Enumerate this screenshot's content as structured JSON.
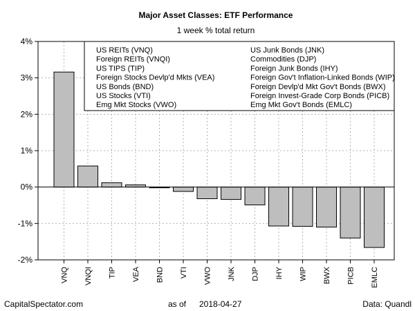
{
  "chart_data": {
    "type": "bar",
    "title": "Major Asset Classes: ETF Performance",
    "subtitle": "1 week % total return",
    "categories": [
      "VNQ",
      "VNQI",
      "TIP",
      "VEA",
      "BND",
      "VTI",
      "VWO",
      "JNK",
      "DJP",
      "IHY",
      "WIP",
      "BWX",
      "PICB",
      "EMLC"
    ],
    "values": [
      3.16,
      0.58,
      0.12,
      0.06,
      -0.02,
      -0.12,
      -0.32,
      -0.34,
      -0.49,
      -1.07,
      -1.08,
      -1.1,
      -1.4,
      -1.66
    ],
    "ylim": [
      -2,
      4
    ],
    "yticks": [
      -2,
      -1,
      0,
      1,
      2,
      3,
      4
    ],
    "ytick_labels": [
      "-2%",
      "-1%",
      "0%",
      "1%",
      "2%",
      "3%",
      "4%"
    ],
    "grid": true,
    "legend_placement": "top-right",
    "legend": {
      "left_column": [
        "US REITs (VNQ)",
        "Foreign REITs (VNQI)",
        "US TIPS (TIP)",
        "Foreign Stocks Devlp'd Mkts (VEA)",
        "US Bonds (BND)",
        "US Stocks (VTI)",
        "Emg Mkt Stocks (VWO)"
      ],
      "right_column": [
        "US Junk Bonds (JNK)",
        "Commodities (DJP)",
        "Foreign Junk Bonds (IHY)",
        "Foreign Gov't Inflation-Linked Bonds (WIP)",
        "Foreign Devlp'd Mkt Gov't Bonds (BWX)",
        "Foreign Invest-Grade Corp Bonds (PICB)",
        "Emg Mkt Gov't Bonds (EMLC)"
      ]
    },
    "bar_color": "#bebebe"
  },
  "footer": {
    "source_left": "CapitalSpectator.com",
    "as_of_label": "as of",
    "as_of_date": "2018-04-27",
    "data_credit": "Data: Quandl"
  }
}
